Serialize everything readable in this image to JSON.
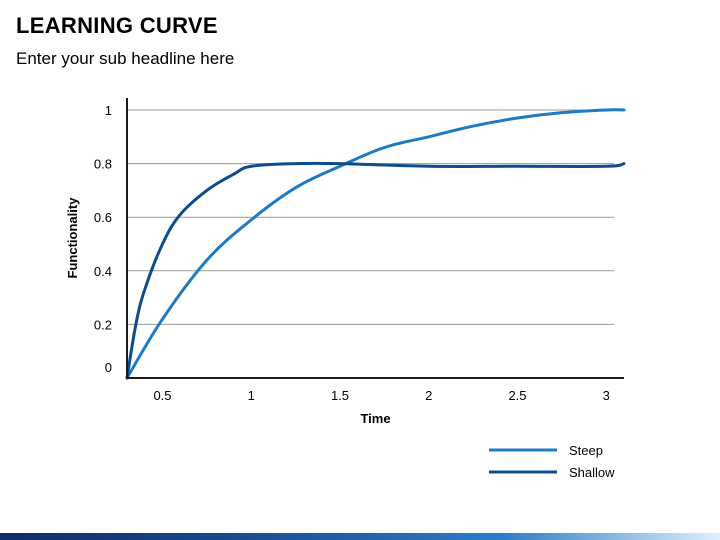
{
  "slide": {
    "title": "LEARNING CURVE",
    "subtitle": "Enter your sub headline here"
  },
  "chart_data": {
    "type": "line",
    "title": "",
    "xlabel": "Time",
    "ylabel": "Functionality",
    "xlim": [
      0.3,
      3.1
    ],
    "ylim": [
      0,
      1
    ],
    "x_ticks": [
      0.5,
      1,
      1.5,
      2,
      2.5,
      3
    ],
    "x_tick_labels": [
      "0.5",
      "1",
      "1.5",
      "2",
      "2.5",
      "3"
    ],
    "y_ticks": [
      0,
      0.2,
      0.4,
      0.6,
      0.8,
      1
    ],
    "y_tick_labels": [
      "0",
      "0.2",
      "0.4",
      "0.6",
      "0.8",
      "1"
    ],
    "grid": "horizontal",
    "legend_position": "bottom-right",
    "series": [
      {
        "name": "Steep",
        "color": "#1f7ac0",
        "x": [
          0.3,
          0.5,
          0.75,
          1.0,
          1.25,
          1.5,
          1.75,
          2.0,
          2.25,
          2.5,
          2.75,
          3.0,
          3.1
        ],
        "y": [
          0.0,
          0.22,
          0.44,
          0.59,
          0.71,
          0.79,
          0.86,
          0.9,
          0.94,
          0.97,
          0.99,
          1.0,
          1.0
        ]
      },
      {
        "name": "Shallow",
        "color": "#0e4d8c",
        "x": [
          0.3,
          0.35,
          0.4,
          0.5,
          0.6,
          0.75,
          0.9,
          1.0,
          1.25,
          1.5,
          2.0,
          2.5,
          3.0,
          3.1
        ],
        "y": [
          0.0,
          0.2,
          0.33,
          0.5,
          0.61,
          0.7,
          0.76,
          0.79,
          0.8,
          0.8,
          0.79,
          0.79,
          0.79,
          0.8
        ]
      }
    ]
  }
}
